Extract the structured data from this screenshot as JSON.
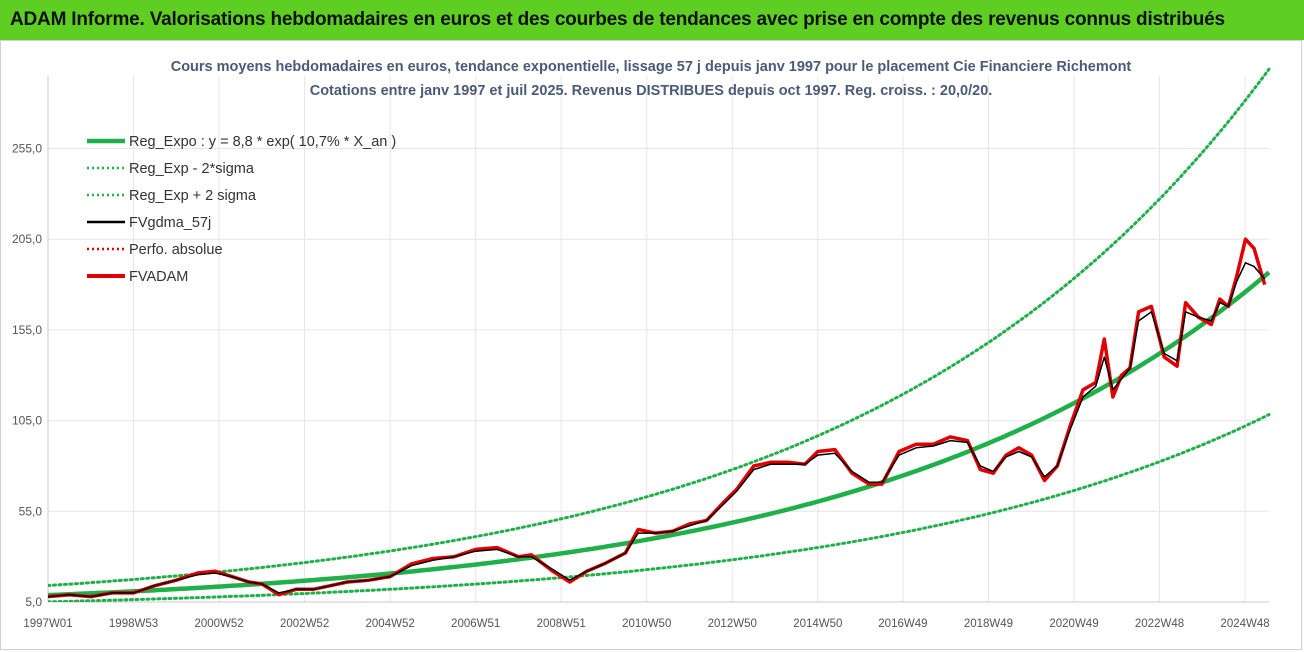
{
  "banner": {
    "title": "ADAM Informe. Valorisations hebdomadaires en euros et des courbes de tendances avec prise en compte des revenus connus distribués"
  },
  "colors": {
    "banner": "#5fce22",
    "reg_expo": "#1fb04a",
    "sigma": "#1fb04a",
    "fvgdma": "#000000",
    "perfo": "#e00000",
    "fvadam": "#e00000",
    "grid": "#e6e6e6"
  },
  "chart_data": {
    "type": "line",
    "title": "Cours moyens hebdomadaires en euros, tendance exponentielle, lissage 57 j depuis janv 1997 pour le placement Cie Financiere Richemont",
    "subtitle": "Cotations entre janv 1997 et juil 2025. Revenus DISTRIBUES depuis oct 1997. Reg. croiss. : 20,0/20.",
    "xlabel": "",
    "ylabel": "",
    "xlim": [
      1997.0,
      2025.55
    ],
    "ylim": [
      5,
      295
    ],
    "y_ticks": [
      5,
      55,
      105,
      155,
      205,
      255
    ],
    "y_tick_labels": [
      "5,0",
      "55,0",
      "105,0",
      "155,0",
      "205,0",
      "255,0"
    ],
    "x_tick_labels": [
      "1997W01",
      "1998W53",
      "2000W52",
      "2002W52",
      "2004W52",
      "2006W51",
      "2008W51",
      "2010W50",
      "2012W50",
      "2014W50",
      "2016W49",
      "2018W49",
      "2020W49",
      "2022W48",
      "2024W48"
    ],
    "x_tick_positions": [
      1997.0,
      1999.0,
      2001.0,
      2003.0,
      2005.0,
      2007.0,
      2009.0,
      2011.0,
      2013.0,
      2015.0,
      2016.99,
      2018.99,
      2020.99,
      2022.99,
      2024.99
    ],
    "grid": true,
    "legend_position": "top-left",
    "legend": [
      {
        "label": "Reg_Expo : y = 8,8 * exp( 10,7% *  X_an )",
        "style": "solid-thick",
        "color": "#1fb04a"
      },
      {
        "label": "Reg_Exp - 2*sigma",
        "style": "dotted",
        "color": "#1fb04a"
      },
      {
        "label": "Reg_Exp + 2 sigma",
        "style": "dotted",
        "color": "#1fb04a"
      },
      {
        "label": "FVgdma_57j",
        "style": "solid",
        "color": "#000000"
      },
      {
        "label": "Perfo. absolue",
        "style": "dotted",
        "color": "#e00000"
      },
      {
        "label": "FVADAM",
        "style": "solid-thick",
        "color": "#e00000"
      }
    ],
    "regression": {
      "a": 8.8,
      "rate": 0.107,
      "lower_factor": 0.58,
      "upper_factor": 1.6
    },
    "series": [
      {
        "name": "FVADAM",
        "x": [
          1997.0,
          1997.5,
          1998.0,
          1998.5,
          1999.0,
          1999.5,
          2000.0,
          2000.5,
          2000.9,
          2001.3,
          2001.7,
          2002.0,
          2002.4,
          2002.8,
          2003.2,
          2003.6,
          2004.0,
          2004.5,
          2005.0,
          2005.5,
          2006.0,
          2006.5,
          2007.0,
          2007.5,
          2008.0,
          2008.3,
          2008.8,
          2009.2,
          2009.6,
          2010.0,
          2010.5,
          2010.8,
          2011.2,
          2011.6,
          2012.0,
          2012.4,
          2012.8,
          2013.1,
          2013.5,
          2013.9,
          2014.3,
          2014.7,
          2015.0,
          2015.4,
          2015.8,
          2016.2,
          2016.5,
          2016.9,
          2017.3,
          2017.7,
          2018.1,
          2018.5,
          2018.8,
          2019.1,
          2019.4,
          2019.7,
          2020.0,
          2020.3,
          2020.6,
          2020.9,
          2021.2,
          2021.5,
          2021.7,
          2021.9,
          2022.1,
          2022.3,
          2022.5,
          2022.8,
          2023.1,
          2023.4,
          2023.6,
          2023.9,
          2024.2,
          2024.4,
          2024.6,
          2024.8,
          2025.0,
          2025.2,
          2025.45
        ],
        "values": [
          8,
          9,
          8,
          10,
          10,
          14,
          17,
          21,
          22,
          19,
          16,
          15,
          9,
          12,
          12,
          14,
          16,
          17,
          19,
          26,
          29,
          30,
          34,
          35,
          30,
          31,
          22,
          16,
          22,
          26,
          32,
          45,
          43,
          44,
          48,
          50,
          60,
          67,
          80,
          82,
          82,
          81,
          88,
          89,
          76,
          70,
          70,
          88,
          92,
          92,
          96,
          94,
          78,
          76,
          86,
          90,
          86,
          72,
          80,
          102,
          122,
          126,
          150,
          118,
          130,
          134,
          165,
          168,
          140,
          135,
          170,
          162,
          158,
          172,
          168,
          185,
          205,
          200,
          180
        ]
      },
      {
        "name": "FVgdma_57j",
        "x": [
          1997.0,
          1997.5,
          1998.0,
          1998.5,
          1999.0,
          1999.5,
          2000.0,
          2000.5,
          2000.9,
          2001.3,
          2001.7,
          2002.0,
          2002.4,
          2002.8,
          2003.2,
          2003.6,
          2004.0,
          2004.5,
          2005.0,
          2005.5,
          2006.0,
          2006.5,
          2007.0,
          2007.5,
          2008.0,
          2008.3,
          2008.8,
          2009.2,
          2009.6,
          2010.0,
          2010.5,
          2010.8,
          2011.2,
          2011.6,
          2012.0,
          2012.4,
          2012.8,
          2013.1,
          2013.5,
          2013.9,
          2014.3,
          2014.7,
          2015.0,
          2015.4,
          2015.8,
          2016.2,
          2016.5,
          2016.9,
          2017.3,
          2017.7,
          2018.1,
          2018.5,
          2018.8,
          2019.1,
          2019.4,
          2019.7,
          2020.0,
          2020.3,
          2020.6,
          2020.9,
          2021.2,
          2021.5,
          2021.7,
          2021.9,
          2022.1,
          2022.3,
          2022.5,
          2022.8,
          2023.1,
          2023.4,
          2023.6,
          2023.9,
          2024.2,
          2024.4,
          2024.6,
          2024.8,
          2025.0,
          2025.2,
          2025.45
        ],
        "values": [
          8,
          9,
          8,
          10,
          10,
          14,
          17,
          20,
          21,
          19,
          16,
          15,
          10,
          12,
          12,
          14,
          16,
          17,
          19,
          25,
          28,
          30,
          33,
          34,
          30,
          30,
          23,
          17,
          22,
          26,
          32,
          43,
          43,
          44,
          47,
          50,
          59,
          66,
          78,
          81,
          81,
          81,
          86,
          87,
          77,
          71,
          71,
          86,
          90,
          91,
          94,
          93,
          80,
          77,
          85,
          88,
          85,
          74,
          80,
          100,
          118,
          124,
          140,
          122,
          128,
          134,
          160,
          165,
          142,
          138,
          165,
          162,
          160,
          170,
          168,
          182,
          192,
          190,
          183
        ]
      }
    ]
  }
}
